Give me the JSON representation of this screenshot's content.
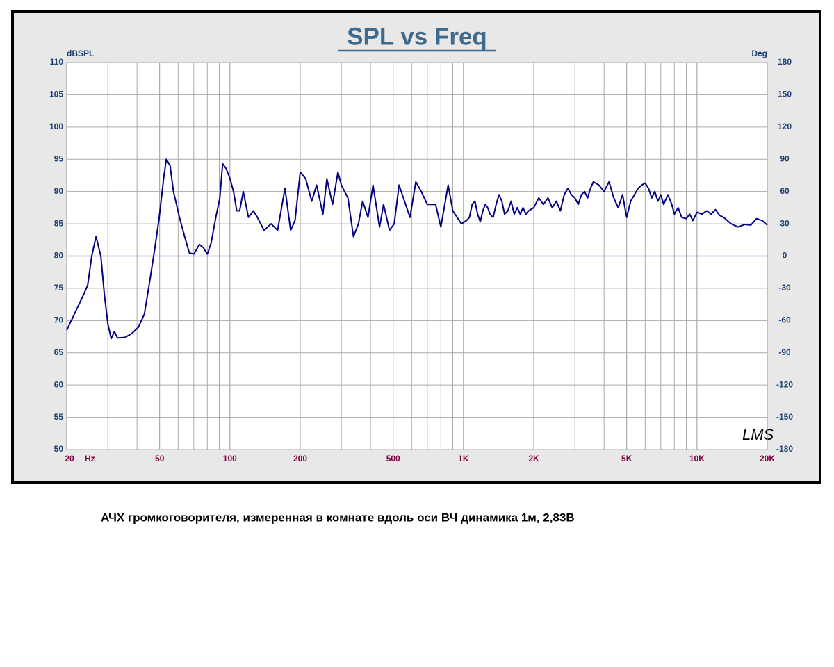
{
  "chart_data": {
    "type": "line",
    "title": "SPL vs Freq",
    "ylabel": "dBSPL",
    "y2label": "Deg",
    "xlabel": "Hz",
    "watermark": "LMS",
    "caption": "АЧХ громкоговорителя, измеренная в комнате вдоль оси ВЧ динамика 1м, 2,83В",
    "xscale": "log",
    "xlim": [
      20,
      20000
    ],
    "xticks": [
      20,
      50,
      100,
      200,
      500,
      {
        "value": 1000,
        "label": "1K"
      },
      {
        "value": 2000,
        "label": "2K"
      },
      {
        "value": 5000,
        "label": "5K"
      },
      {
        "value": 10000,
        "label": "10K"
      },
      {
        "value": 20000,
        "label": "20K"
      }
    ],
    "x_minor_ticks": [
      30,
      40,
      60,
      70,
      80,
      90,
      300,
      400,
      600,
      700,
      800,
      900,
      3000,
      4000,
      6000,
      7000,
      8000,
      9000
    ],
    "ylim": [
      50,
      110
    ],
    "yticks": [
      50,
      55,
      60,
      65,
      70,
      75,
      80,
      85,
      90,
      95,
      100,
      105,
      110
    ],
    "y2lim": [
      -180,
      180
    ],
    "y2ticks": [
      -180,
      -150,
      -120,
      -90,
      -60,
      -30,
      0,
      30,
      60,
      90,
      120,
      150,
      180
    ],
    "grid": true,
    "color": "#000080",
    "x": [
      20,
      21.9,
      23.6,
      24.6,
      25.6,
      26.7,
      28,
      29,
      30,
      31,
      32,
      33,
      35.6,
      38,
      40.6,
      43,
      45.3,
      47.6,
      49.8,
      52,
      53.4,
      55.4,
      57.3,
      60.8,
      64,
      67,
      70,
      74,
      77,
      80,
      83,
      87,
      90.5,
      93,
      96.5,
      100,
      103.6,
      107,
      110,
      114,
      120,
      126,
      131,
      140,
      150,
      160,
      172,
      182,
      190,
      200,
      211,
      224,
      235,
      250,
      260,
      275,
      290,
      300,
      320,
      338,
      355,
      370,
      390,
      410,
      437,
      455,
      482,
      505,
      530,
      590,
      625,
      660,
      700,
      760,
      800,
      860,
      900,
      980,
      1030,
      1060,
      1090,
      1120,
      1150,
      1180,
      1210,
      1240,
      1270,
      1300,
      1340,
      1380,
      1420,
      1460,
      1500,
      1550,
      1600,
      1650,
      1700,
      1750,
      1800,
      1850,
      1900,
      2000,
      2100,
      2200,
      2300,
      2400,
      2500,
      2600,
      2700,
      2800,
      2900,
      3000,
      3100,
      3200,
      3300,
      3400,
      3500,
      3600,
      3800,
      4000,
      4200,
      4400,
      4600,
      4800,
      5000,
      5200,
      5400,
      5600,
      5800,
      6000,
      6200,
      6400,
      6600,
      6800,
      7000,
      7200,
      7500,
      7800,
      8000,
      8300,
      8600,
      9000,
      9300,
      9600,
      10000,
      10500,
      11000,
      11500,
      12000,
      12500,
      13000,
      14000,
      15000,
      16000,
      17000,
      18000,
      19000,
      20000
    ],
    "values": [
      68.5,
      71.5,
      74,
      75.5,
      80,
      83,
      80,
      74,
      69.5,
      67.2,
      68.3,
      67.3,
      67.4,
      68,
      69,
      71,
      76,
      81,
      86,
      92,
      95,
      94,
      90,
      86,
      83,
      80.5,
      80.3,
      81.8,
      81.3,
      80.3,
      82,
      86,
      89,
      94.3,
      93.5,
      92,
      90,
      87,
      87,
      90,
      86,
      87,
      86,
      84,
      85,
      84,
      90.5,
      84,
      85.5,
      93,
      92,
      88.5,
      91,
      86.5,
      92,
      88,
      93,
      91,
      89,
      83,
      85,
      88.5,
      86,
      91,
      84.5,
      88,
      84,
      85,
      91,
      86,
      91.5,
      90,
      88,
      88,
      84.5,
      91,
      87,
      85,
      85.5,
      86,
      88,
      88.5,
      86.5,
      85.3,
      87,
      88,
      87.5,
      86.5,
      86,
      88,
      89.5,
      88.5,
      86.5,
      87,
      88.5,
      86.5,
      87.5,
      86.5,
      87.5,
      86.5,
      87,
      87.5,
      89,
      88,
      89,
      87.5,
      88.5,
      87,
      89.5,
      90.5,
      89.5,
      89,
      88,
      89.5,
      90,
      89,
      90.5,
      91.5,
      91,
      90,
      91.5,
      89,
      87.5,
      89.5,
      86,
      88.5,
      89.5,
      90.5,
      91,
      91.3,
      90.5,
      89,
      90,
      88.5,
      89.5,
      88,
      89.5,
      88,
      86.5,
      87.5,
      86,
      85.8,
      86.5,
      85.5,
      86.8,
      86.5,
      87,
      86.5,
      87.2,
      86.3,
      86,
      85,
      84.5,
      84.9,
      84.8,
      85.8,
      85.5,
      84.8
    ]
  }
}
